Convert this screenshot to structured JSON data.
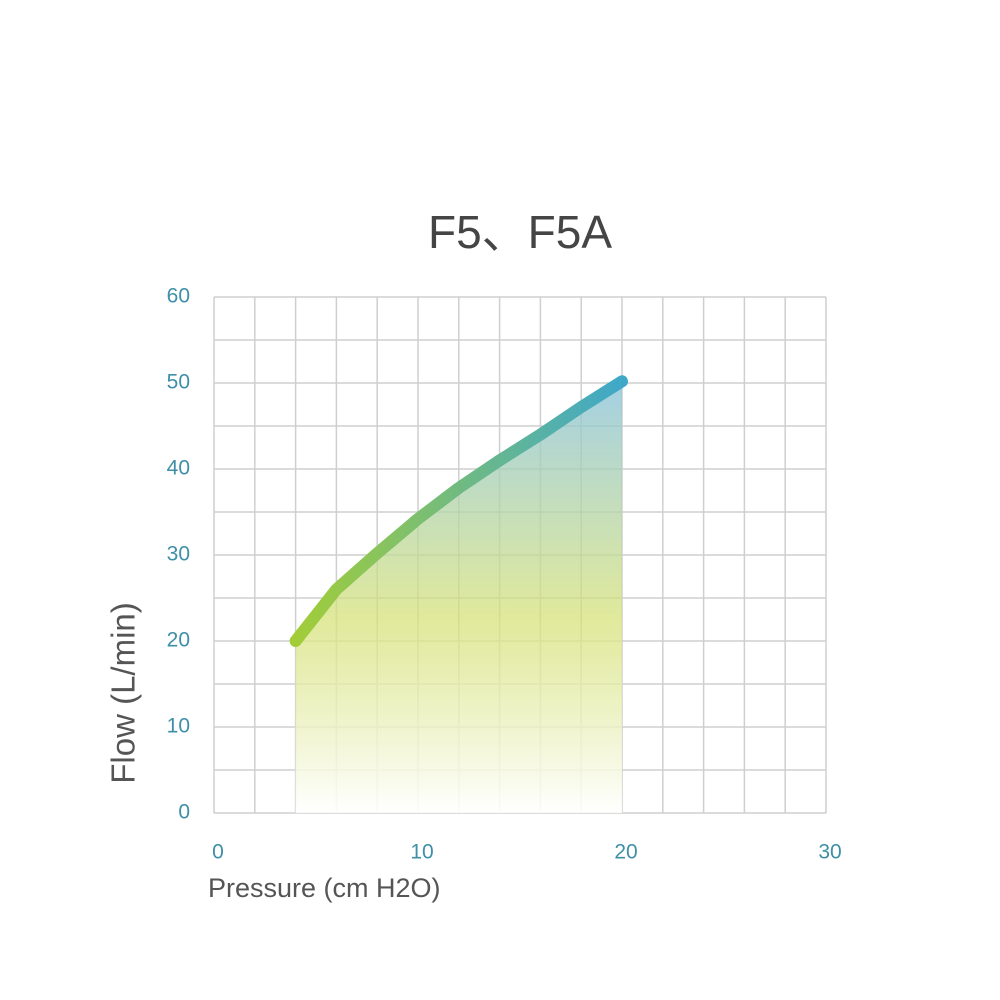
{
  "chart_data": {
    "type": "line",
    "title": "F5、F5A",
    "x_label": "Pressure (cm H2O)",
    "y_label": "Flow (L/min)",
    "x": [
      4,
      6,
      8,
      10,
      12,
      14,
      16,
      18,
      20
    ],
    "series": [
      {
        "name": "F5、F5A",
        "colors": [
          "#a2cd38",
          "#3fa8c9"
        ],
        "values": [
          20,
          26,
          30.2,
          34.2,
          37.8,
          41,
          44,
          47.2,
          50.2
        ]
      }
    ],
    "xlim": [
      0,
      30
    ],
    "xticks": [
      0,
      10,
      20,
      30
    ],
    "ylim": [
      0,
      60
    ],
    "yticks": [
      0,
      10,
      20,
      30,
      40,
      50,
      60
    ],
    "grid": true,
    "grid_x": [
      0,
      2,
      4,
      6,
      8,
      10,
      12,
      14,
      16,
      18,
      20,
      22,
      24,
      26,
      28,
      30
    ],
    "grid_y": [
      0,
      5,
      10,
      15,
      20,
      25,
      30,
      35,
      40,
      45,
      50,
      55,
      60
    ]
  }
}
